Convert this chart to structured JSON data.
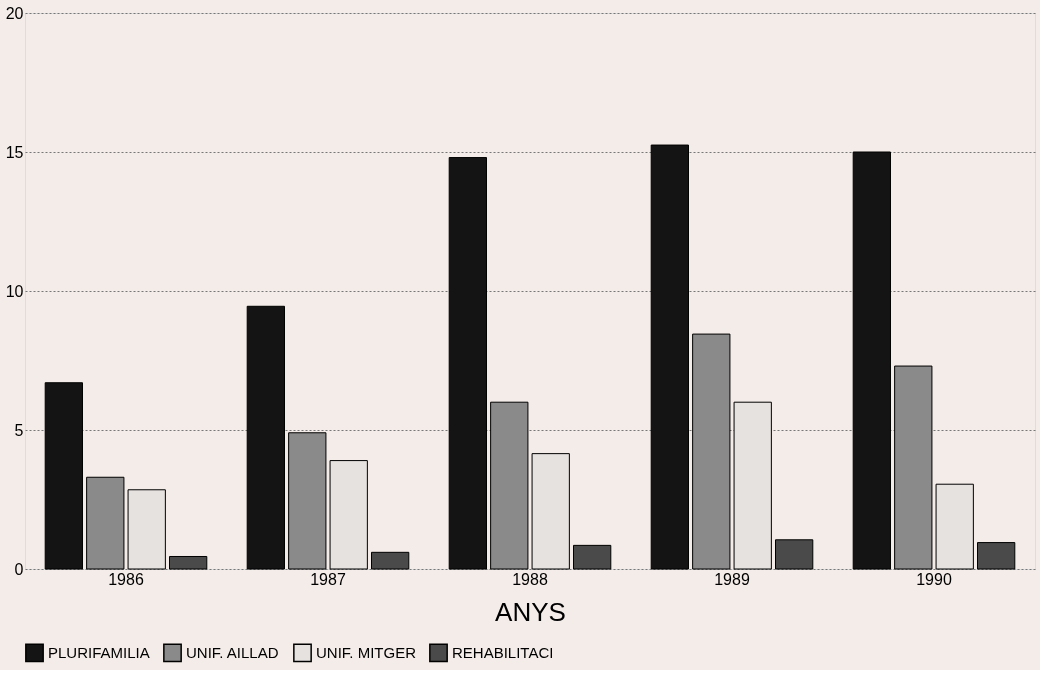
{
  "chart_data": {
    "type": "bar",
    "xlabel": "ANYS",
    "categories": [
      "1986",
      "1987",
      "1988",
      "1989",
      "1990"
    ],
    "series": [
      {
        "name": "PLURIFAMILIA",
        "color": "#141414",
        "values": [
          6.7,
          9.45,
          14.8,
          15.25,
          15.0
        ]
      },
      {
        "name": "UNIF. AILLAD",
        "color": "#8a8a8a",
        "values": [
          3.3,
          4.9,
          6.0,
          8.45,
          7.3
        ]
      },
      {
        "name": "UNIF. MITGER",
        "color": "#e6e2e0",
        "values": [
          2.85,
          3.9,
          4.15,
          6.0,
          3.05
        ]
      },
      {
        "name": "REHABILITACI",
        "color": "#4a4a4a",
        "values": [
          0.45,
          0.6,
          0.85,
          1.05,
          0.95
        ]
      }
    ],
    "ylim": [
      0,
      20
    ],
    "yticks": [
      0,
      5,
      10,
      15,
      20
    ],
    "grid": "y",
    "legend": "bottom"
  }
}
